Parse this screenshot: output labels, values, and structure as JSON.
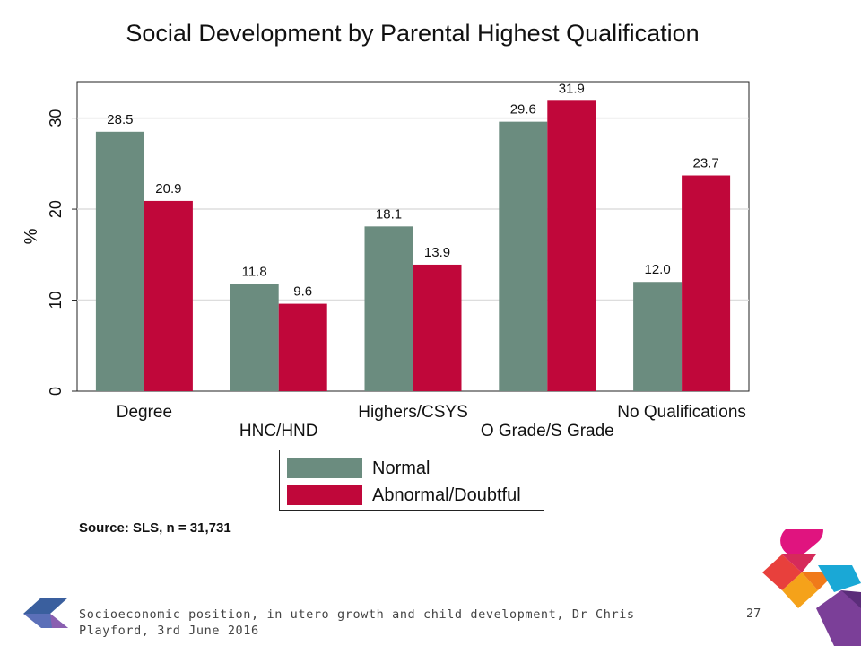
{
  "chart_data": {
    "type": "bar",
    "title": "Social Development by Parental Highest Qualification",
    "xlabel": "",
    "ylabel": "%",
    "ylim": [
      0,
      34
    ],
    "yticks": [
      0,
      10,
      20,
      30
    ],
    "grid": true,
    "categories": [
      "Degree",
      "HNC/HND",
      "Highers/CSYS",
      "O Grade/S Grade",
      "No Qualifications"
    ],
    "series": [
      {
        "name": "Normal",
        "color": "#6b8c7f",
        "values": [
          28.5,
          11.8,
          18.1,
          29.6,
          12.0
        ]
      },
      {
        "name": "Abnormal/Doubtful",
        "color": "#c0073a",
        "values": [
          20.9,
          9.6,
          13.9,
          31.9,
          23.7
        ]
      }
    ],
    "value_labels": [
      [
        "28.5",
        "11.8",
        "18.1",
        "29.6",
        "12.0"
      ],
      [
        "20.9",
        "9.6",
        "13.9",
        "31.9",
        "23.7"
      ]
    ],
    "legend_position": "bottom"
  },
  "source_note": "Source: SLS, n = 31,731",
  "footer": {
    "text": "Socioeconomic position, in utero growth and child development, Dr Chris Playford, 3rd June 2016",
    "page_number": "27"
  },
  "colors": {
    "logo_left_blue": "#3a5f9e",
    "logo_left_purple": "#8a5fb0",
    "logo_right_pink": "#e0147f",
    "logo_right_red": "#e8403c",
    "logo_right_orange": "#f5a21a",
    "logo_right_teal": "#1aa8d6",
    "logo_right_purple": "#7b3f98"
  }
}
